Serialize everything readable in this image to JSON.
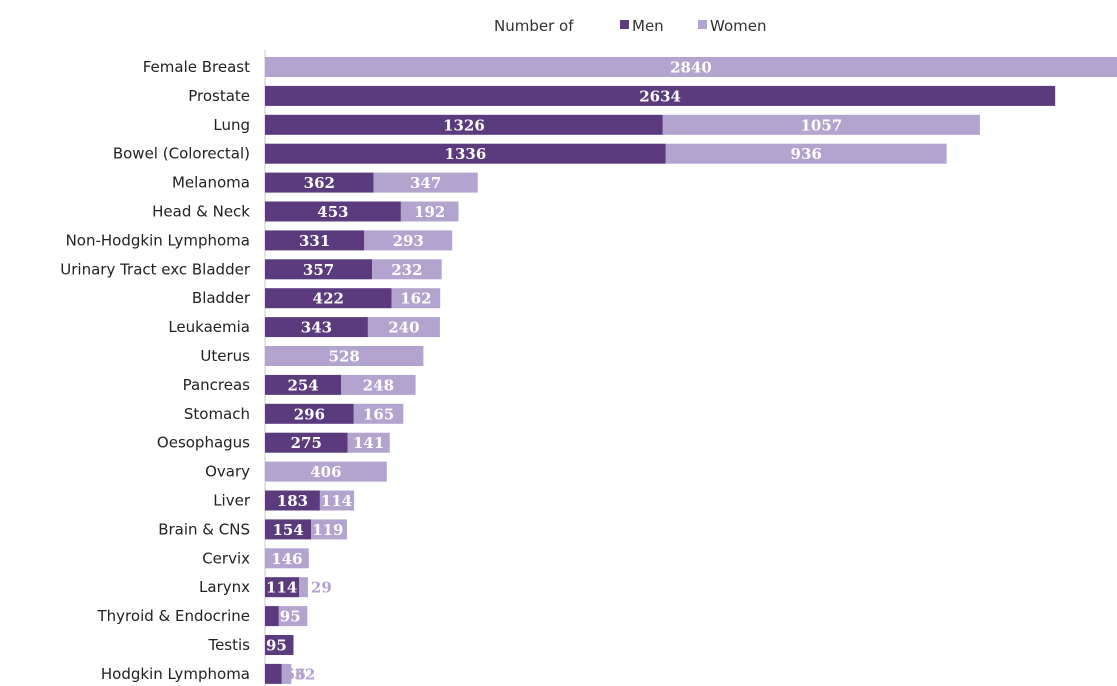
{
  "legend": {
    "title": "Number of",
    "items": [
      {
        "label": "Men",
        "color": "#5b3b7e"
      },
      {
        "label": "Women",
        "color": "#b3a3cf"
      }
    ]
  },
  "chart_data": {
    "type": "bar",
    "orientation": "horizontal",
    "stacked": true,
    "title": "",
    "xlabel": "",
    "ylabel": "",
    "xlim": [
      0,
      2840
    ],
    "legend_position": "top-center",
    "grid": false,
    "categories": [
      "Female Breast",
      "Prostate",
      "Lung",
      "Bowel (Colorectal)",
      "Melanoma",
      "Head & Neck",
      "Non-Hodgkin Lymphoma",
      "Urinary Tract exc Bladder",
      "Bladder",
      "Leukaemia",
      "Uterus",
      "Pancreas",
      "Stomach",
      "Oesophagus",
      "Ovary",
      "Liver",
      "Brain & CNS",
      "Cervix",
      "Larynx",
      "Thyroid & Endocrine",
      "Testis",
      "Hodgkin Lymphoma"
    ],
    "series": [
      {
        "name": "Men",
        "color": "#5b3b7e",
        "values": [
          null,
          2634,
          1326,
          1336,
          362,
          453,
          331,
          357,
          422,
          343,
          null,
          254,
          296,
          275,
          null,
          183,
          154,
          null,
          114,
          46,
          95,
          56
        ]
      },
      {
        "name": "Women",
        "color": "#b3a3cf",
        "values": [
          2840,
          null,
          1057,
          936,
          347,
          192,
          293,
          232,
          162,
          240,
          528,
          248,
          165,
          141,
          406,
          114,
          119,
          146,
          29,
          95,
          null,
          32
        ]
      }
    ]
  }
}
